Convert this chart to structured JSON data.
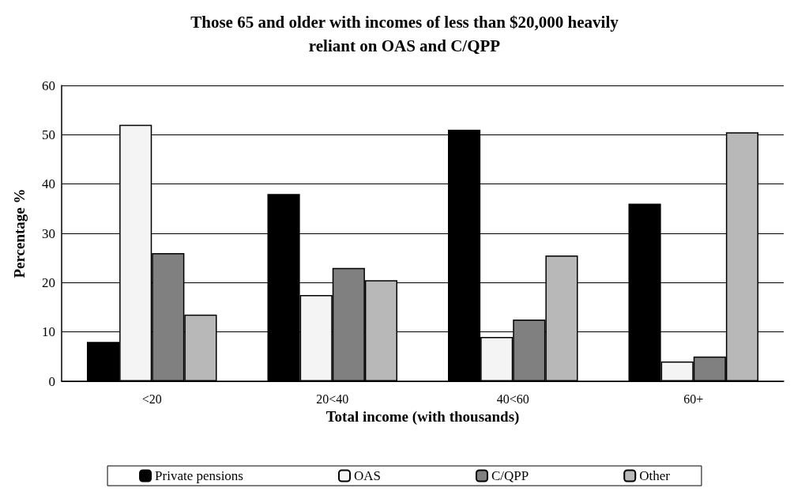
{
  "chart_data": {
    "type": "bar",
    "title": "Those 65 and older with incomes of less than $20,000 heavily\nreliant on OAS and C/QPP",
    "xlabel": "Total income (with thousands)",
    "ylabel": "Percentage %",
    "categories": [
      "<20",
      "20<40",
      "40<60",
      "60+"
    ],
    "series": [
      {
        "name": "Private pensions",
        "color": "#000000",
        "values": [
          8,
          38,
          51,
          36
        ]
      },
      {
        "name": "OAS",
        "color": "#f4f4f4",
        "values": [
          52,
          17.5,
          9,
          4
        ]
      },
      {
        "name": "C/QPP",
        "color": "#808080",
        "values": [
          26,
          23,
          12.5,
          5
        ]
      },
      {
        "name": "Other",
        "color": "#b8b8b8",
        "values": [
          13.5,
          20.5,
          25.5,
          50.5
        ]
      }
    ],
    "ylim": [
      0,
      60
    ],
    "yticks": [
      0,
      10,
      20,
      30,
      40,
      50,
      60
    ],
    "grid": "y",
    "legend": "bottom"
  }
}
